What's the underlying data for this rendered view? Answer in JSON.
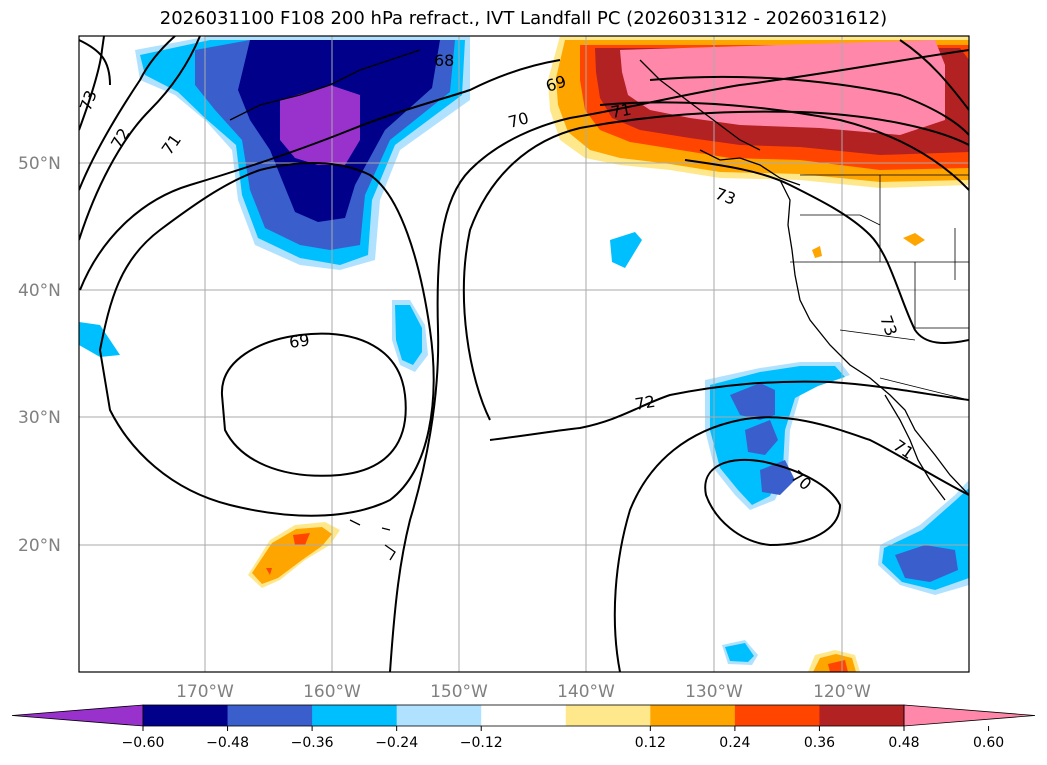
{
  "title": "2026031100 F108 200 hPa refract., IVT Landfall PC (2026031312 - 2026031612)",
  "lat_labels": [
    "50°N",
    "40°N",
    "30°N",
    "20°N"
  ],
  "lon_labels": [
    "170°W",
    "160°W",
    "150°W",
    "140°W",
    "130°W",
    "120°W"
  ],
  "colorbar": {
    "ticks": [
      "−0.60",
      "−0.48",
      "−0.36",
      "−0.24",
      "−0.12",
      "0.12",
      "0.24",
      "0.36",
      "0.48",
      "0.60"
    ],
    "colors": [
      "#9932cc",
      "#00008b",
      "#3a5fcd",
      "#00bfff",
      "#b0e2ff",
      "#ffffff",
      "#ffe88c",
      "#ffa500",
      "#ff4500",
      "#b22222",
      "#ff88aa"
    ]
  },
  "contour_labels": [
    "68",
    "69",
    "70",
    "71",
    "72",
    "73",
    "73",
    "72",
    "71",
    "70",
    "69",
    "73",
    "71",
    "70"
  ]
}
